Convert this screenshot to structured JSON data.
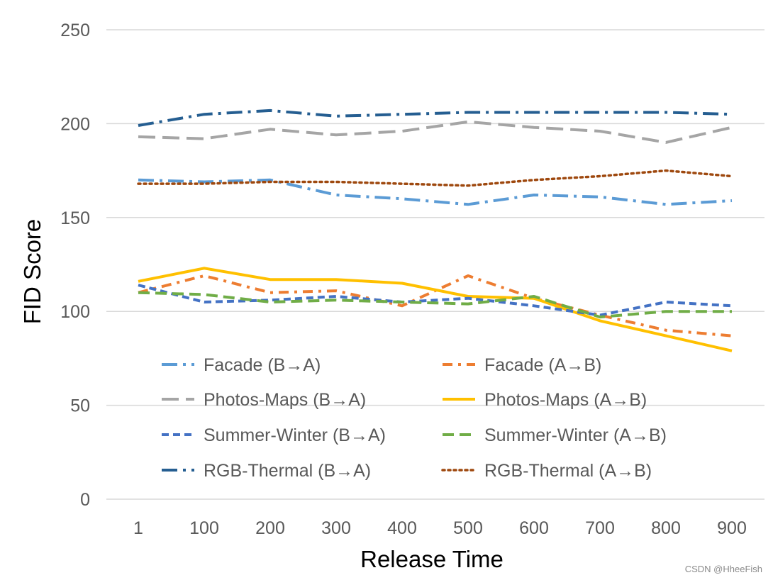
{
  "chart_data": {
    "type": "line",
    "title": "",
    "xlabel": "Release Time",
    "ylabel": "FID Score",
    "categories": [
      "1",
      "100",
      "200",
      "300",
      "400",
      "500",
      "600",
      "700",
      "800",
      "900"
    ],
    "ylim": [
      0,
      250
    ],
    "yticks": [
      "0",
      "50",
      "100",
      "150",
      "200",
      "250"
    ],
    "grid": "horizontal",
    "legend_position": "inside-bottom",
    "series": [
      {
        "name": "Facade (B→A)",
        "values": [
          170,
          169,
          170,
          162,
          160,
          157,
          162,
          161,
          157,
          159
        ],
        "color": "#5b9bd5",
        "dash": "long-dash-dot"
      },
      {
        "name": "Facade (A→B)",
        "values": [
          110,
          119,
          110,
          111,
          103,
          119,
          107,
          98,
          90,
          87
        ],
        "color": "#ed7d31",
        "dash": "dash-dot"
      },
      {
        "name": "Photos-Maps (B→A)",
        "values": [
          193,
          192,
          197,
          194,
          196,
          201,
          198,
          196,
          190,
          198
        ],
        "color": "#a5a5a5",
        "dash": "long-dash"
      },
      {
        "name": "Photos-Maps (A→B)",
        "values": [
          116,
          123,
          117,
          117,
          115,
          108,
          107,
          95,
          87,
          79
        ],
        "color": "#ffc000",
        "dash": "solid"
      },
      {
        "name": "Summer-Winter (B→A)",
        "values": [
          114,
          105,
          106,
          108,
          105,
          107,
          103,
          98,
          105,
          103
        ],
        "color": "#4472c4",
        "dash": "short-dash"
      },
      {
        "name": "Summer-Winter (A→B)",
        "values": [
          110,
          109,
          105,
          106,
          105,
          104,
          108,
          97,
          100,
          100
        ],
        "color": "#70ad47",
        "dash": "dash"
      },
      {
        "name": "RGB-Thermal (B→A)",
        "values": [
          199,
          205,
          207,
          204,
          205,
          206,
          206,
          206,
          206,
          205
        ],
        "color": "#255e91",
        "dash": "long-dash-dot"
      },
      {
        "name": "RGB-Thermal (A→B)",
        "values": [
          168,
          168,
          169,
          169,
          168,
          167,
          170,
          172,
          175,
          172
        ],
        "color": "#9e480e",
        "dash": "dot"
      }
    ]
  },
  "watermark": "CSDN @HheeFish"
}
